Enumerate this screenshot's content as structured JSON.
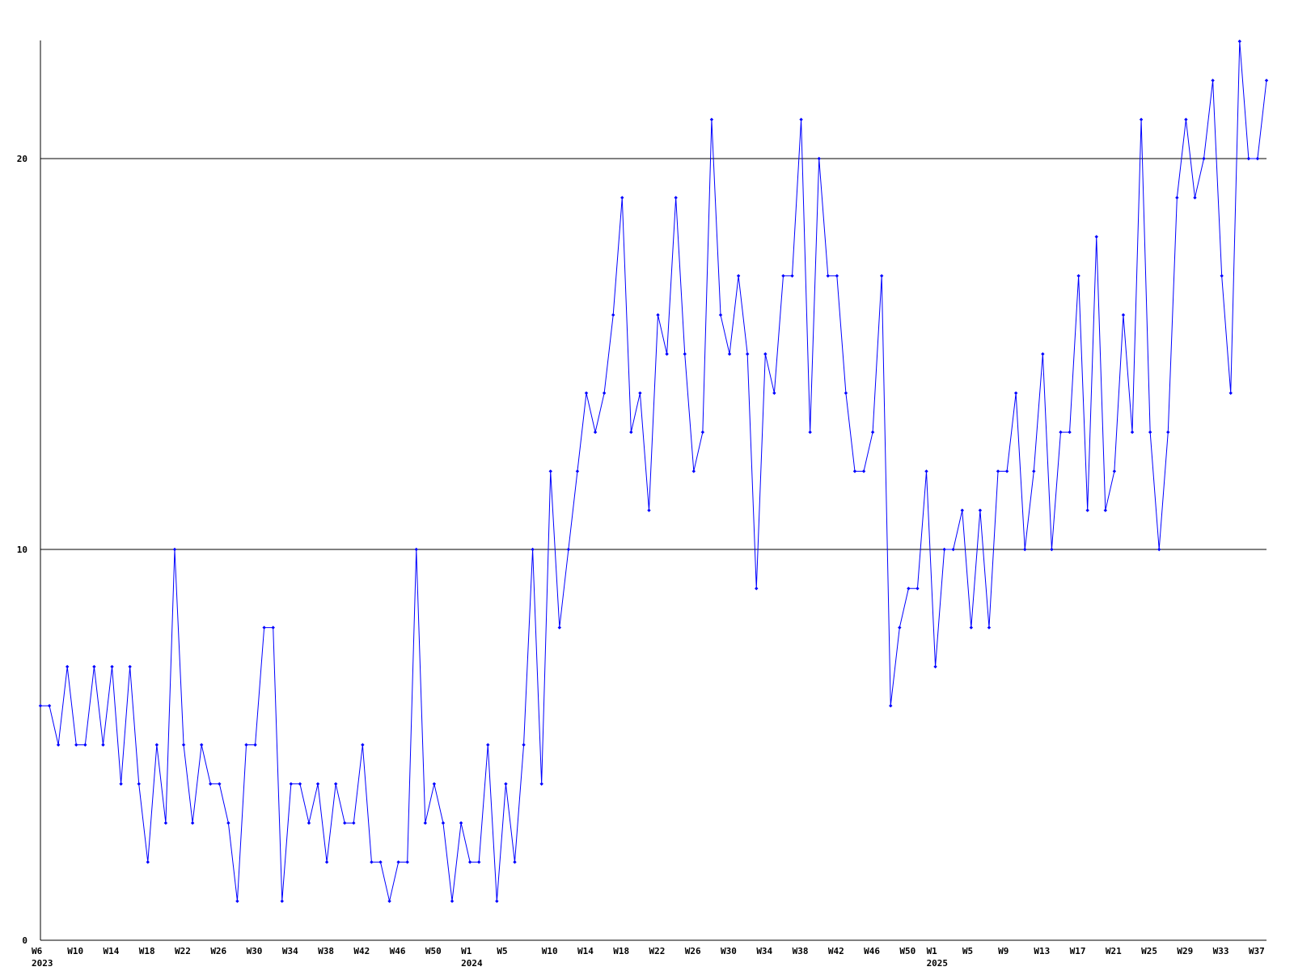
{
  "chart_data": {
    "type": "line",
    "title": "",
    "xlabel": "",
    "ylabel": "",
    "ylim": [
      0,
      23
    ],
    "y_ticks": [
      0,
      10,
      20
    ],
    "grid": "horizontal lines at 10 and 20",
    "colors": {
      "series": "#0000ff",
      "grid": "#000000",
      "axis": "#000000",
      "background": "#ffffff"
    },
    "x_week_labels": [
      {
        "text": "W6",
        "index": 0
      },
      {
        "text": "W10",
        "index": 4
      },
      {
        "text": "W14",
        "index": 8
      },
      {
        "text": "W18",
        "index": 12
      },
      {
        "text": "W22",
        "index": 16
      },
      {
        "text": "W26",
        "index": 20
      },
      {
        "text": "W30",
        "index": 24
      },
      {
        "text": "W34",
        "index": 28
      },
      {
        "text": "W38",
        "index": 32
      },
      {
        "text": "W42",
        "index": 36
      },
      {
        "text": "W46",
        "index": 40
      },
      {
        "text": "W50",
        "index": 44
      },
      {
        "text": "W1",
        "index": 48
      },
      {
        "text": "W5",
        "index": 52
      },
      {
        "text": "W10",
        "index": 57
      },
      {
        "text": "W14",
        "index": 61
      },
      {
        "text": "W18",
        "index": 65
      },
      {
        "text": "W22",
        "index": 69
      },
      {
        "text": "W26",
        "index": 73
      },
      {
        "text": "W30",
        "index": 77
      },
      {
        "text": "W34",
        "index": 81
      },
      {
        "text": "W38",
        "index": 85
      },
      {
        "text": "W42",
        "index": 89
      },
      {
        "text": "W46",
        "index": 93
      },
      {
        "text": "W50",
        "index": 97
      },
      {
        "text": "W1",
        "index": 100
      },
      {
        "text": "W5",
        "index": 104
      },
      {
        "text": "W9",
        "index": 108
      },
      {
        "text": "W13",
        "index": 112
      },
      {
        "text": "W17",
        "index": 116
      },
      {
        "text": "W21",
        "index": 120
      },
      {
        "text": "W25",
        "index": 124
      },
      {
        "text": "W29",
        "index": 128
      },
      {
        "text": "W33",
        "index": 132
      },
      {
        "text": "W37",
        "index": 136
      }
    ],
    "x_year_labels": [
      {
        "text": "2023",
        "index": 0
      },
      {
        "text": "2024",
        "index": 48
      },
      {
        "text": "2025",
        "index": 100
      }
    ],
    "series": [
      {
        "values": [
          6,
          6,
          5,
          7,
          5,
          5,
          7,
          5,
          7,
          4,
          7,
          4,
          2,
          5,
          3,
          10,
          5,
          3,
          5,
          4,
          4,
          3,
          1,
          5,
          5,
          8,
          8,
          1,
          4,
          4,
          3,
          4,
          2,
          4,
          3,
          3,
          5,
          2,
          2,
          1,
          2,
          2,
          10,
          3,
          4,
          3,
          1,
          3,
          2,
          2,
          5,
          1,
          4,
          2,
          5,
          10,
          4,
          12,
          8,
          10,
          12,
          14,
          13,
          14,
          16,
          19,
          13,
          14,
          11,
          16,
          15,
          19,
          15,
          12,
          13,
          21,
          16,
          15,
          17,
          15,
          9,
          15,
          14,
          17,
          17,
          21,
          13,
          20,
          17,
          17,
          14,
          12,
          12,
          13,
          17,
          6,
          8,
          9,
          9,
          12,
          7,
          10,
          10,
          11,
          8,
          11,
          8,
          12,
          12,
          14,
          10,
          12,
          15,
          10,
          13,
          13,
          17,
          11,
          18,
          11,
          12,
          16,
          13,
          21,
          13,
          10,
          13,
          19,
          21,
          19,
          20,
          22,
          17,
          14,
          23,
          20,
          20,
          22
        ]
      }
    ]
  }
}
